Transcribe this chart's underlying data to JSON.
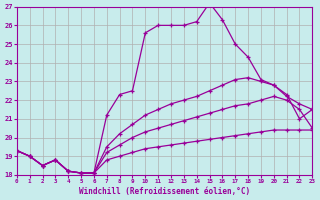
{
  "xlabel": "Windchill (Refroidissement éolien,°C)",
  "xlim": [
    0,
    23
  ],
  "ylim": [
    18,
    27
  ],
  "yticks": [
    18,
    19,
    20,
    21,
    22,
    23,
    24,
    25,
    26,
    27
  ],
  "xticks": [
    0,
    1,
    2,
    3,
    4,
    5,
    6,
    7,
    8,
    9,
    10,
    11,
    12,
    13,
    14,
    15,
    16,
    17,
    18,
    19,
    20,
    21,
    22,
    23
  ],
  "background_color": "#c8ecec",
  "line_color": "#990099",
  "grid_color": "#b0b0b0",
  "lines": [
    {
      "x": [
        0,
        1,
        2,
        3,
        4,
        5,
        6,
        7,
        8,
        9,
        10,
        11,
        12,
        13,
        14,
        15,
        16,
        17,
        18,
        19,
        20,
        21,
        22,
        23
      ],
      "y": [
        19.3,
        19.0,
        18.5,
        18.8,
        18.2,
        18.1,
        18.1,
        21.2,
        22.3,
        22.5,
        25.6,
        26.0,
        26.0,
        26.0,
        26.2,
        27.2,
        26.3,
        25.0,
        24.3,
        23.1,
        22.8,
        22.3,
        21.0,
        21.5
      ]
    },
    {
      "x": [
        0,
        1,
        2,
        3,
        4,
        5,
        6,
        7,
        8,
        9,
        10,
        11,
        12,
        13,
        14,
        15,
        16,
        17,
        18,
        19,
        20,
        21,
        22,
        23
      ],
      "y": [
        19.3,
        19.0,
        18.5,
        18.8,
        18.2,
        18.1,
        18.1,
        19.5,
        20.2,
        20.7,
        21.2,
        21.5,
        21.8,
        22.0,
        22.2,
        22.5,
        22.8,
        23.1,
        23.2,
        23.0,
        22.8,
        22.2,
        21.8,
        21.5
      ]
    },
    {
      "x": [
        0,
        1,
        2,
        3,
        4,
        5,
        6,
        7,
        8,
        9,
        10,
        11,
        12,
        13,
        14,
        15,
        16,
        17,
        18,
        19,
        20,
        21,
        22,
        23
      ],
      "y": [
        19.3,
        19.0,
        18.5,
        18.8,
        18.2,
        18.1,
        18.1,
        19.2,
        19.6,
        20.0,
        20.3,
        20.5,
        20.7,
        20.9,
        21.1,
        21.3,
        21.5,
        21.7,
        21.8,
        22.0,
        22.2,
        22.0,
        21.5,
        20.5
      ]
    },
    {
      "x": [
        0,
        1,
        2,
        3,
        4,
        5,
        6,
        7,
        8,
        9,
        10,
        11,
        12,
        13,
        14,
        15,
        16,
        17,
        18,
        19,
        20,
        21,
        22,
        23
      ],
      "y": [
        19.3,
        19.0,
        18.5,
        18.8,
        18.2,
        18.1,
        18.1,
        18.8,
        19.0,
        19.2,
        19.4,
        19.5,
        19.6,
        19.7,
        19.8,
        19.9,
        20.0,
        20.1,
        20.2,
        20.3,
        20.4,
        20.4,
        20.4,
        20.4
      ]
    }
  ]
}
